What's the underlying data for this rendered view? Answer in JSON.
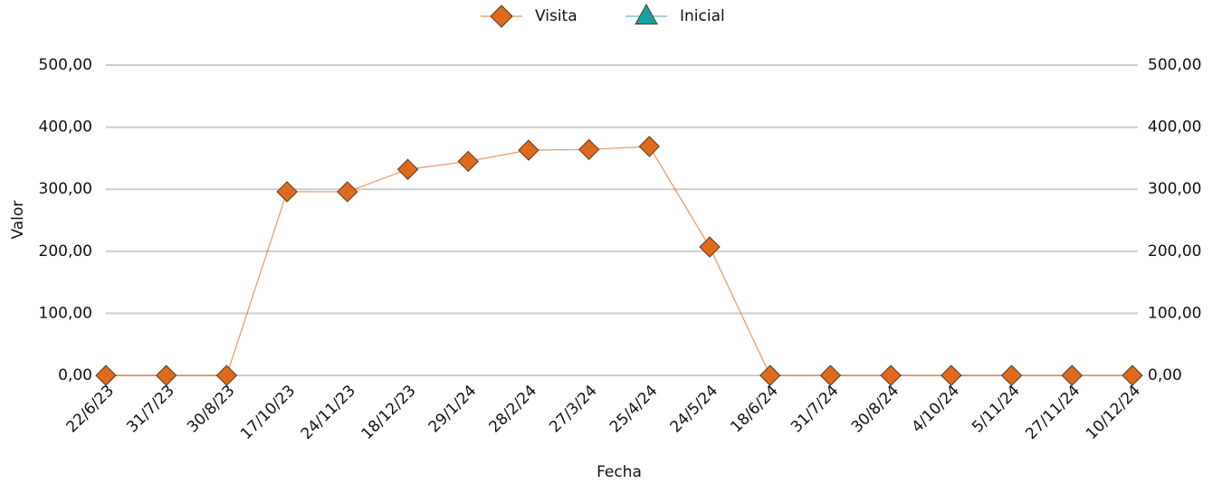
{
  "chart_data": {
    "type": "line",
    "x_label": "Fecha",
    "y_label": "Valor",
    "categories": [
      "22/6/23",
      "31/7/23",
      "30/8/23",
      "17/10/23",
      "24/11/23",
      "18/12/23",
      "29/1/24",
      "28/2/24",
      "27/3/24",
      "25/4/24",
      "24/5/24",
      "18/6/24",
      "31/7/24",
      "30/8/24",
      "4/10/24",
      "5/11/24",
      "27/11/24",
      "10/12/24"
    ],
    "series": [
      {
        "name": "Visita",
        "color": "#e06a1b",
        "values": [
          0,
          0,
          0,
          296,
          296,
          332,
          345,
          363,
          364,
          369,
          207,
          0,
          0,
          0,
          0,
          0,
          0,
          0
        ]
      },
      {
        "name": "Inicial",
        "color": "#17a2a2",
        "values": [
          null,
          null,
          null,
          null,
          null,
          null,
          null,
          null,
          null,
          null,
          null,
          null,
          null,
          null,
          null,
          null,
          null,
          null
        ]
      }
    ],
    "ylim": [
      0,
      500
    ],
    "yticks": [
      {
        "value": 0,
        "label": "0,00"
      },
      {
        "value": 100,
        "label": "100,00"
      },
      {
        "value": 200,
        "label": "200,00"
      },
      {
        "value": 300,
        "label": "300,00"
      },
      {
        "value": 400,
        "label": "400,00"
      },
      {
        "value": 500,
        "label": "500,00"
      }
    ],
    "y2lim": [
      0,
      500
    ],
    "y2ticks": [
      {
        "value": 0,
        "label": "0,00"
      },
      {
        "value": 100,
        "label": "100,00"
      },
      {
        "value": 200,
        "label": "200,00"
      },
      {
        "value": 300,
        "label": "300,00"
      },
      {
        "value": 400,
        "label": "400,00"
      },
      {
        "value": 500,
        "label": "500,00"
      }
    ],
    "grid": true,
    "legend": "top"
  }
}
